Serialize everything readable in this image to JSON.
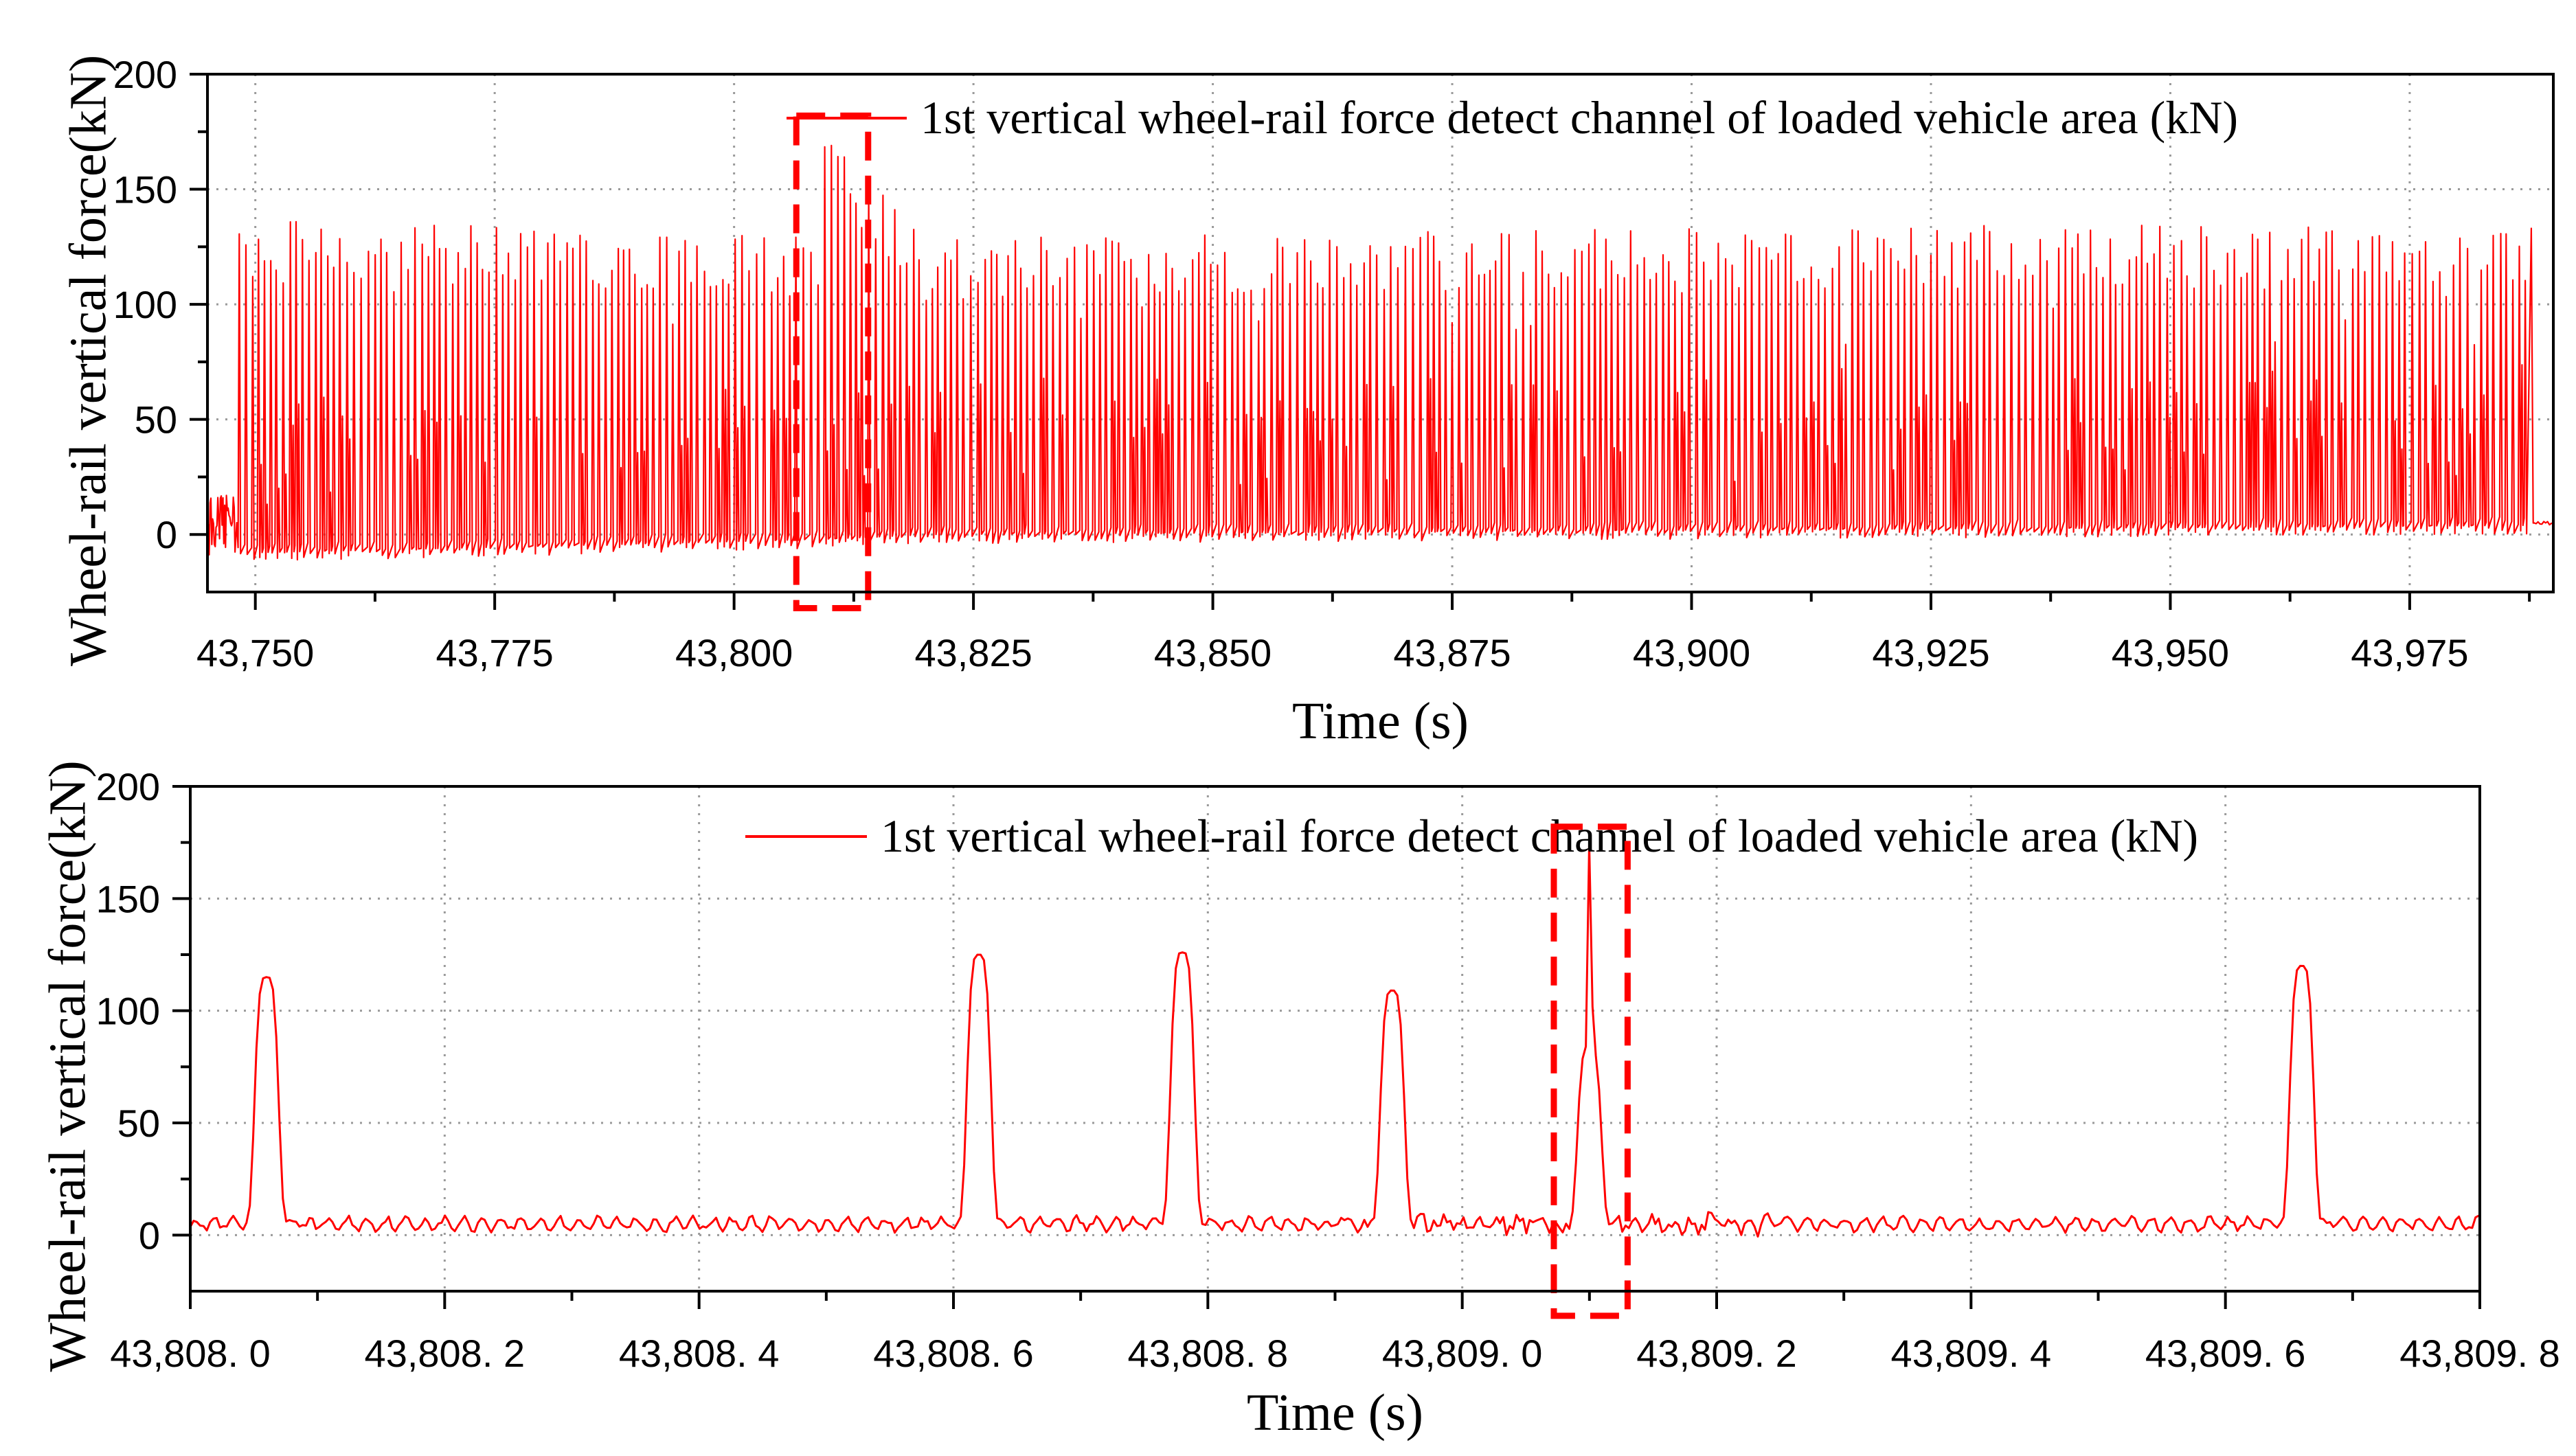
{
  "colors": {
    "series": "#ff0000",
    "highlight": "#ff0000",
    "axis": "#000000",
    "grid": "#9a9a9a"
  },
  "chart_data": [
    {
      "type": "line",
      "title": "",
      "xlabel": "Time (s)",
      "ylabel": "Wheel-rail vertical force(kN)",
      "xlim": [
        43745,
        43990
      ],
      "ylim": [
        -25,
        200
      ],
      "xticks": [
        43750,
        43775,
        43800,
        43825,
        43850,
        43875,
        43900,
        43925,
        43950,
        43975
      ],
      "xtick_labels": [
        "43,750",
        "43,775",
        "43,800",
        "43,825",
        "43,850",
        "43,875",
        "43,900",
        "43,925",
        "43,950",
        "43,975"
      ],
      "yticks": [
        0,
        50,
        100,
        150,
        200
      ],
      "ytick_labels": [
        "0",
        "50",
        "100",
        "150",
        "200"
      ],
      "grid": true,
      "legend_position": "top-right",
      "series": [
        {
          "name": "1st vertical wheel-rail force detect channel of loaded vehicle area (kN)",
          "color": "#ff0000",
          "description_points": {
            "x": [
              43745,
              43748,
              43748.2,
              43780,
              43800,
              43808.6,
              43809.1,
              43820,
              43860,
              43900,
              43950,
              43987.5,
              43988,
              43990
            ],
            "peak_kN": [
              15,
              15,
              137,
              135,
              133,
              128,
              175,
              128,
              132,
              133,
              135,
              133,
              5,
              5
            ],
            "baseline_kN": [
              5,
              5,
              -8,
              -5,
              -3,
              -2,
              -2,
              0,
              1,
              2,
              3,
              4,
              5,
              5
            ]
          }
        }
      ],
      "annotations": [
        {
          "type": "highlight-box",
          "x_range": [
            43806.5,
            43814
          ],
          "y_range": [
            -32,
            182
          ]
        }
      ]
    },
    {
      "type": "line",
      "title": "",
      "xlabel": "Time (s)",
      "ylabel": "Wheel-rail vertical force(kN)",
      "xlim": [
        43808.0,
        43809.8
      ],
      "ylim": [
        -25,
        200
      ],
      "xticks": [
        43808.0,
        43808.2,
        43808.4,
        43808.6,
        43808.8,
        43809.0,
        43809.2,
        43809.4,
        43809.6,
        43809.8
      ],
      "xtick_labels": [
        "43,808. 0",
        "43,808. 2",
        "43,808. 4",
        "43,808. 6",
        "43,808. 8",
        "43,809. 0",
        "43,809. 2",
        "43,809. 4",
        "43,809. 6",
        "43,809. 8"
      ],
      "yticks": [
        0,
        50,
        100,
        150,
        200
      ],
      "ytick_labels": [
        "0",
        "50",
        "100",
        "150",
        "200"
      ],
      "grid": true,
      "legend_position": "top-right",
      "series": [
        {
          "name": "1st vertical wheel-rail force detect channel of loaded vehicle area (kN)",
          "color": "#ff0000",
          "baseline_kN": 5,
          "pulses": [
            {
              "center": 43808.06,
              "peak": 116
            },
            {
              "center": 43808.62,
              "peak": 126
            },
            {
              "center": 43808.78,
              "peak": 127
            },
            {
              "center": 43808.945,
              "peak": 110
            },
            {
              "center": 43809.1,
              "peak": 85,
              "spike": 175
            },
            {
              "center": 43809.66,
              "peak": 121
            }
          ]
        }
      ],
      "annotations": [
        {
          "type": "highlight-box",
          "x_range": [
            43809.072,
            43809.13
          ],
          "y_range": [
            -36,
            182
          ]
        }
      ]
    }
  ]
}
